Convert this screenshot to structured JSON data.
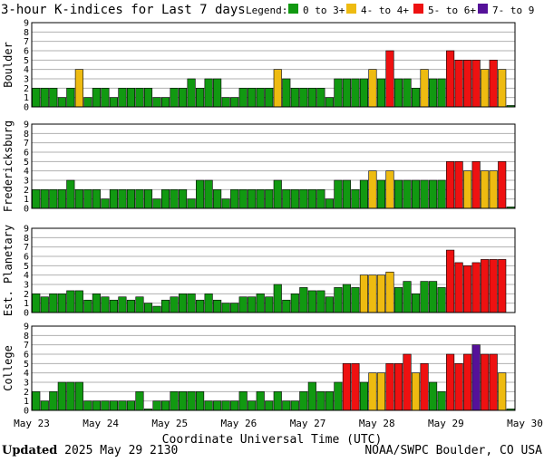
{
  "title": "3-hour K-indices for Last 7 days",
  "legend": {
    "label": "Legend:",
    "items": [
      {
        "label": "0 to 3+",
        "color": "#119911"
      },
      {
        "label": "4- to 4+",
        "color": "#eebb11"
      },
      {
        "label": "5- to 6+",
        "color": "#ee1111"
      },
      {
        "label": "7- to 9",
        "color": "#551199"
      }
    ]
  },
  "x_tick_labels": [
    "May 23",
    "May 24",
    "May 25",
    "May 26",
    "May 27",
    "May 28",
    "May 29",
    "May 30"
  ],
  "xlabel": "Coordinate Universal Time (UTC)",
  "footer": {
    "updated_label": "Updated",
    "updated_value": "2025 May 29 2130",
    "credit": "NOAA/SWPC Boulder, CO USA"
  },
  "chart_data": [
    {
      "type": "bar",
      "name": "Boulder",
      "ylabel": "Boulder",
      "ylim": [
        0,
        9
      ],
      "yticks": [
        0,
        1,
        2,
        3,
        4,
        5,
        6,
        7,
        8,
        9
      ],
      "values": [
        2,
        2,
        2,
        1,
        2,
        4,
        1,
        2,
        2,
        1,
        2,
        2,
        2,
        2,
        1,
        1,
        2,
        2,
        3,
        2,
        3,
        3,
        1,
        1,
        2,
        2,
        2,
        2,
        4,
        3,
        2,
        2,
        2,
        2,
        1,
        3,
        3,
        3,
        3,
        4,
        3,
        6,
        3,
        3,
        2,
        4,
        3,
        3,
        6,
        5,
        5,
        5,
        4,
        5,
        4,
        0.15
      ]
    },
    {
      "type": "bar",
      "name": "Fredericksburg",
      "ylabel": "Fredericksburg",
      "ylim": [
        0,
        9
      ],
      "yticks": [
        0,
        1,
        2,
        3,
        4,
        5,
        6,
        7,
        8,
        9
      ],
      "values": [
        2,
        2,
        2,
        2,
        3,
        2,
        2,
        2,
        1,
        2,
        2,
        2,
        2,
        2,
        1,
        2,
        2,
        2,
        1,
        3,
        3,
        2,
        1,
        2,
        2,
        2,
        2,
        2,
        3,
        2,
        2,
        2,
        2,
        2,
        1,
        3,
        3,
        2,
        3,
        4,
        3,
        4,
        3,
        3,
        3,
        3,
        3,
        3,
        5,
        5,
        4,
        5,
        4,
        4,
        5,
        0.15
      ]
    },
    {
      "type": "bar",
      "name": "Est. Planetary",
      "ylabel": "Est. Planetary",
      "ylim": [
        0,
        9
      ],
      "yticks": [
        0,
        1,
        2,
        3,
        4,
        5,
        6,
        7,
        8,
        9
      ],
      "values": [
        2,
        1.67,
        2,
        2,
        2.33,
        2.33,
        1.33,
        2,
        1.67,
        1.33,
        1.67,
        1.33,
        1.67,
        1,
        0.67,
        1.33,
        1.67,
        2,
        2,
        1.33,
        2,
        1.33,
        1,
        1,
        1.67,
        1.67,
        2,
        1.67,
        3,
        1.33,
        2,
        2.67,
        2.33,
        2.33,
        1.67,
        2.67,
        3,
        2.67,
        4,
        4,
        4,
        4.33,
        2.67,
        3.33,
        2,
        3.33,
        3.33,
        2.67,
        6.67,
        5.33,
        5,
        5.33,
        5.67,
        5.67,
        5.67
      ]
    },
    {
      "type": "bar",
      "name": "College",
      "ylabel": "College",
      "ylim": [
        0,
        9
      ],
      "yticks": [
        0,
        1,
        2,
        3,
        4,
        5,
        6,
        7,
        8,
        9
      ],
      "values": [
        2,
        1,
        2,
        3,
        3,
        3,
        1,
        1,
        1,
        1,
        1,
        1,
        2,
        0.15,
        1,
        1,
        2,
        2,
        2,
        2,
        1,
        1,
        1,
        1,
        2,
        1,
        2,
        1,
        2,
        1,
        1,
        2,
        3,
        2,
        2,
        3,
        5,
        5,
        3,
        4,
        4,
        5,
        5,
        6,
        4,
        5,
        3,
        2,
        6,
        5,
        6,
        7,
        6,
        6,
        4,
        0.15
      ]
    }
  ]
}
